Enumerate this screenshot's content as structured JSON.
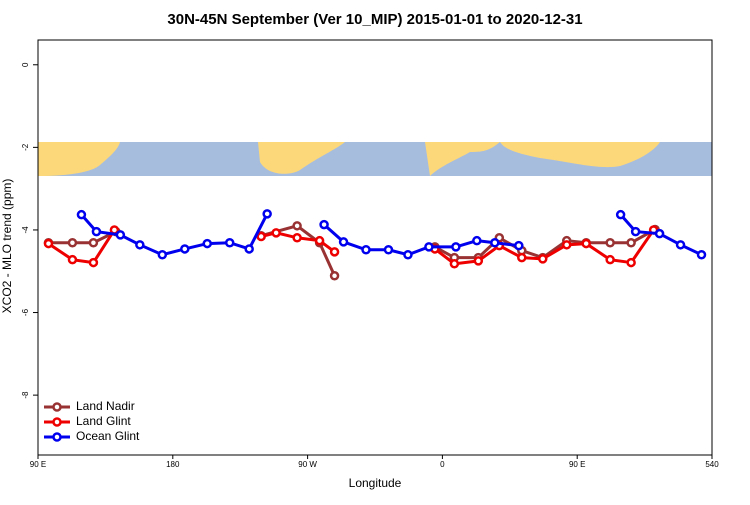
{
  "chart_data": {
    "type": "line",
    "title": "30N-45N September (Ver 10_MIP)   2015-01-01 to 2020-12-31",
    "x_label": "Longitude",
    "y_label": "XCO2 - MLO trend (ppm)",
    "xlim": [
      90,
      540
    ],
    "ylim": [
      -9.45,
      0.6
    ],
    "xticks": [
      {
        "value": 90,
        "label": "90 E"
      },
      180,
      {
        "value": 270,
        "label": "90 W"
      },
      {
        "value": 360,
        "label": "0"
      },
      {
        "value": 450,
        "label": "90 E"
      },
      540
    ],
    "yticks": [
      0,
      -2,
      -4,
      -6,
      -8
    ],
    "legend": "bottom-left",
    "series": [
      {
        "name": "Land Nadir",
        "color": "#993333",
        "x": [
          97,
          113,
          127,
          142,
          null,
          239,
          263,
          278,
          288,
          null,
          355,
          368,
          384,
          398,
          413,
          427,
          443,
          456,
          472,
          486,
          502
        ],
        "values": [
          -4.31,
          -4.31,
          -4.31,
          -4.04,
          null,
          -4.14,
          -3.9,
          -4.31,
          -5.11,
          null,
          -4.41,
          -4.67,
          -4.67,
          -4.19,
          -4.5,
          -4.67,
          -4.26,
          -4.31,
          -4.31,
          -4.31,
          -3.99
        ]
      },
      {
        "name": "Land Glint",
        "color": "#ee0000",
        "x": [
          97,
          113,
          127,
          141,
          null,
          239,
          249,
          263,
          278,
          288,
          null,
          355,
          368,
          384,
          398,
          413,
          427,
          443,
          456,
          472,
          486,
          501
        ],
        "values": [
          -4.33,
          -4.72,
          -4.79,
          -4.0,
          null,
          -4.16,
          -4.07,
          -4.19,
          -4.26,
          -4.53,
          null,
          -4.46,
          -4.82,
          -4.75,
          -4.38,
          -4.67,
          -4.7,
          -4.36,
          -4.33,
          -4.72,
          -4.79,
          -4.0
        ]
      },
      {
        "name": "Ocean Glint",
        "color": "#0000ee",
        "x": [
          119,
          129,
          145,
          158,
          173,
          188,
          203,
          218,
          231,
          243,
          null,
          281,
          294,
          309,
          324,
          337,
          351,
          369,
          383,
          395,
          411,
          null,
          479,
          489,
          505,
          519,
          533
        ],
        "values": [
          -3.63,
          -4.04,
          -4.12,
          -4.36,
          -4.6,
          -4.46,
          -4.33,
          -4.31,
          -4.46,
          -3.61,
          null,
          -3.87,
          -4.29,
          -4.48,
          -4.48,
          -4.6,
          -4.41,
          -4.41,
          -4.26,
          -4.31,
          -4.38,
          null,
          -3.63,
          -4.04,
          -4.09,
          -4.36,
          -4.6
        ]
      }
    ]
  }
}
